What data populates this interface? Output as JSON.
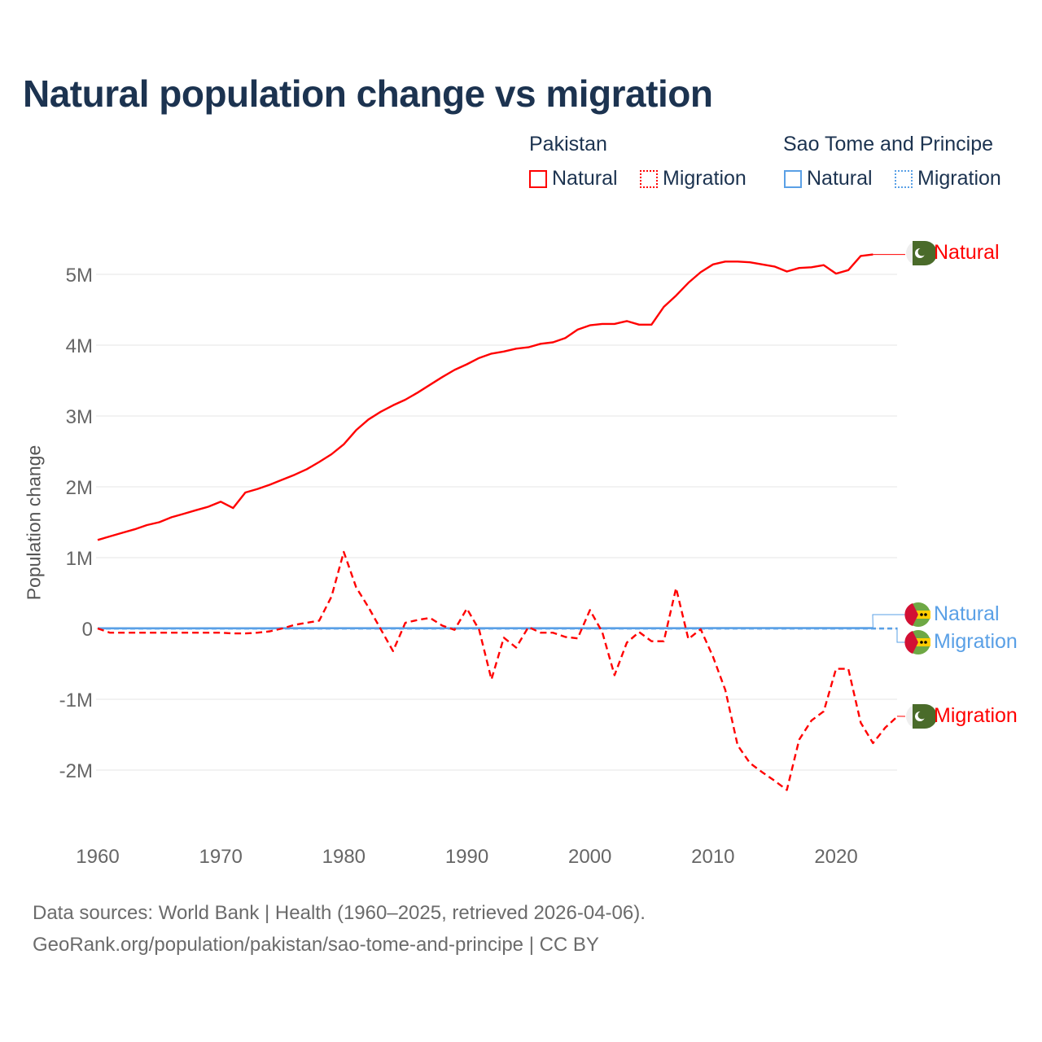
{
  "chart_data": {
    "type": "line",
    "title": "Natural population change vs migration",
    "ylabel": "Population change",
    "xlabel": "",
    "xlim": [
      1960,
      2025
    ],
    "ylim": [
      -2.6,
      5.6
    ],
    "y_unit": "millions",
    "xticks": [
      "1960",
      "1970",
      "1980",
      "1990",
      "2000",
      "2010",
      "2020"
    ],
    "yticks": [
      {
        "v": 5,
        "label": "5M"
      },
      {
        "v": 4,
        "label": "4M"
      },
      {
        "v": 3,
        "label": "3M"
      },
      {
        "v": 2,
        "label": "2M"
      },
      {
        "v": 1,
        "label": "1M"
      },
      {
        "v": 0,
        "label": "0"
      },
      {
        "v": -1,
        "label": "-1M"
      },
      {
        "v": -2,
        "label": "-2M"
      }
    ],
    "grid": true,
    "legend": {
      "groups": [
        {
          "name": "Pakistan",
          "items": [
            "Natural",
            "Migration"
          ],
          "color": "#ff0000"
        },
        {
          "name": "Sao Tome and Principe",
          "items": [
            "Natural",
            "Migration"
          ],
          "color": "#5aa0e6"
        }
      ],
      "placement": "top-right"
    },
    "series": [
      {
        "name": "Natural",
        "country": "Pakistan",
        "color": "#ff0000",
        "dash": false,
        "start": 1960,
        "values": [
          1.25,
          1.3,
          1.35,
          1.4,
          1.46,
          1.5,
          1.57,
          1.62,
          1.67,
          1.72,
          1.79,
          1.7,
          1.92,
          1.97,
          2.03,
          2.1,
          2.17,
          2.25,
          2.35,
          2.46,
          2.6,
          2.8,
          2.95,
          3.06,
          3.15,
          3.23,
          3.33,
          3.44,
          3.55,
          3.65,
          3.73,
          3.82,
          3.88,
          3.91,
          3.95,
          3.97,
          4.02,
          4.04,
          4.1,
          4.22,
          4.28,
          4.3,
          4.3,
          4.34,
          4.29,
          4.29,
          4.54,
          4.7,
          4.88,
          5.03,
          5.14,
          5.18,
          5.18,
          5.17,
          5.14,
          5.11,
          5.04,
          5.09,
          5.1,
          5.13,
          5.01,
          5.06,
          5.26,
          5.28
        ]
      },
      {
        "name": "Migration",
        "country": "Pakistan",
        "color": "#ff0000",
        "dash": true,
        "start": 1960,
        "values": [
          0,
          -0.06,
          -0.06,
          -0.06,
          -0.06,
          -0.06,
          -0.06,
          -0.06,
          -0.06,
          -0.06,
          -0.06,
          -0.07,
          -0.07,
          -0.06,
          -0.04,
          0,
          0.05,
          0.08,
          0.11,
          0.45,
          1.08,
          0.58,
          0.3,
          -0.01,
          -0.32,
          0.08,
          0.12,
          0.15,
          0.04,
          -0.02,
          0.28,
          -0.02,
          -0.72,
          -0.13,
          -0.27,
          0.02,
          -0.06,
          -0.06,
          -0.12,
          -0.14,
          0.26,
          -0.05,
          -0.66,
          -0.2,
          -0.05,
          -0.18,
          -0.18,
          0.57,
          -0.15,
          -0.01,
          -0.4,
          -0.87,
          -1.65,
          -1.9,
          -2.03,
          -2.15,
          -2.28,
          -1.57,
          -1.3,
          -1.17,
          -0.57,
          -0.57,
          -1.33,
          -1.62,
          -1.4,
          -1.24
        ]
      },
      {
        "name": "Natural",
        "country": "Sao Tome and Principe",
        "color": "#5aa0e6",
        "dash": false,
        "start": 1960,
        "values": [
          0.002,
          0.002,
          0.002,
          0.002,
          0.002,
          0.002,
          0.002,
          0.002,
          0.002,
          0.002,
          0.002,
          0.002,
          0.002,
          0.002,
          0.002,
          0.003,
          0.003,
          0.003,
          0.003,
          0.003,
          0.003,
          0.003,
          0.003,
          0.003,
          0.003,
          0.003,
          0.003,
          0.003,
          0.003,
          0.003,
          0.003,
          0.003,
          0.003,
          0.003,
          0.003,
          0.003,
          0.004,
          0.004,
          0.004,
          0.004,
          0.004,
          0.004,
          0.004,
          0.004,
          0.004,
          0.004,
          0.004,
          0.004,
          0.004,
          0.004,
          0.005,
          0.005,
          0.005,
          0.005,
          0.005,
          0.005,
          0.005,
          0.005,
          0.005,
          0.005,
          0.005,
          0.005,
          0.005,
          0.005
        ]
      },
      {
        "name": "Migration",
        "country": "Sao Tome and Principe",
        "color": "#5aa0e6",
        "dash": true,
        "start": 1960,
        "values": [
          -0.001,
          -0.001,
          -0.001,
          -0.001,
          -0.001,
          -0.001,
          -0.001,
          -0.001,
          -0.001,
          -0.001,
          -0.001,
          -0.001,
          -0.001,
          -0.001,
          -0.001,
          -0.001,
          -0.001,
          -0.001,
          -0.001,
          -0.001,
          -0.001,
          -0.001,
          -0.001,
          -0.001,
          -0.001,
          -0.001,
          -0.001,
          -0.001,
          -0.001,
          -0.001,
          -0.001,
          -0.001,
          -0.001,
          -0.001,
          -0.001,
          -0.001,
          -0.001,
          -0.001,
          -0.001,
          -0.001,
          -0.001,
          -0.001,
          -0.001,
          -0.001,
          -0.001,
          -0.001,
          -0.001,
          -0.001,
          -0.001,
          -0.001,
          -0.001,
          -0.001,
          -0.001,
          -0.001,
          -0.001,
          -0.001,
          -0.001,
          -0.001,
          -0.001,
          -0.001,
          -0.001,
          -0.001,
          -0.001,
          -0.001,
          -0.001,
          -0.001
        ]
      }
    ],
    "end_labels": [
      "Natural",
      "Migration",
      "Natural",
      "Migration"
    ]
  },
  "legend": {
    "pakistan": "Pakistan",
    "stp": "Sao Tome and Principe",
    "natural": "Natural",
    "migration": "Migration"
  },
  "footer": {
    "line1": "Data sources: World Bank | Health (1960–2025, retrieved 2026-04-06).",
    "line2": "GeoRank.org/population/pakistan/sao-tome-and-principe | CC BY"
  }
}
